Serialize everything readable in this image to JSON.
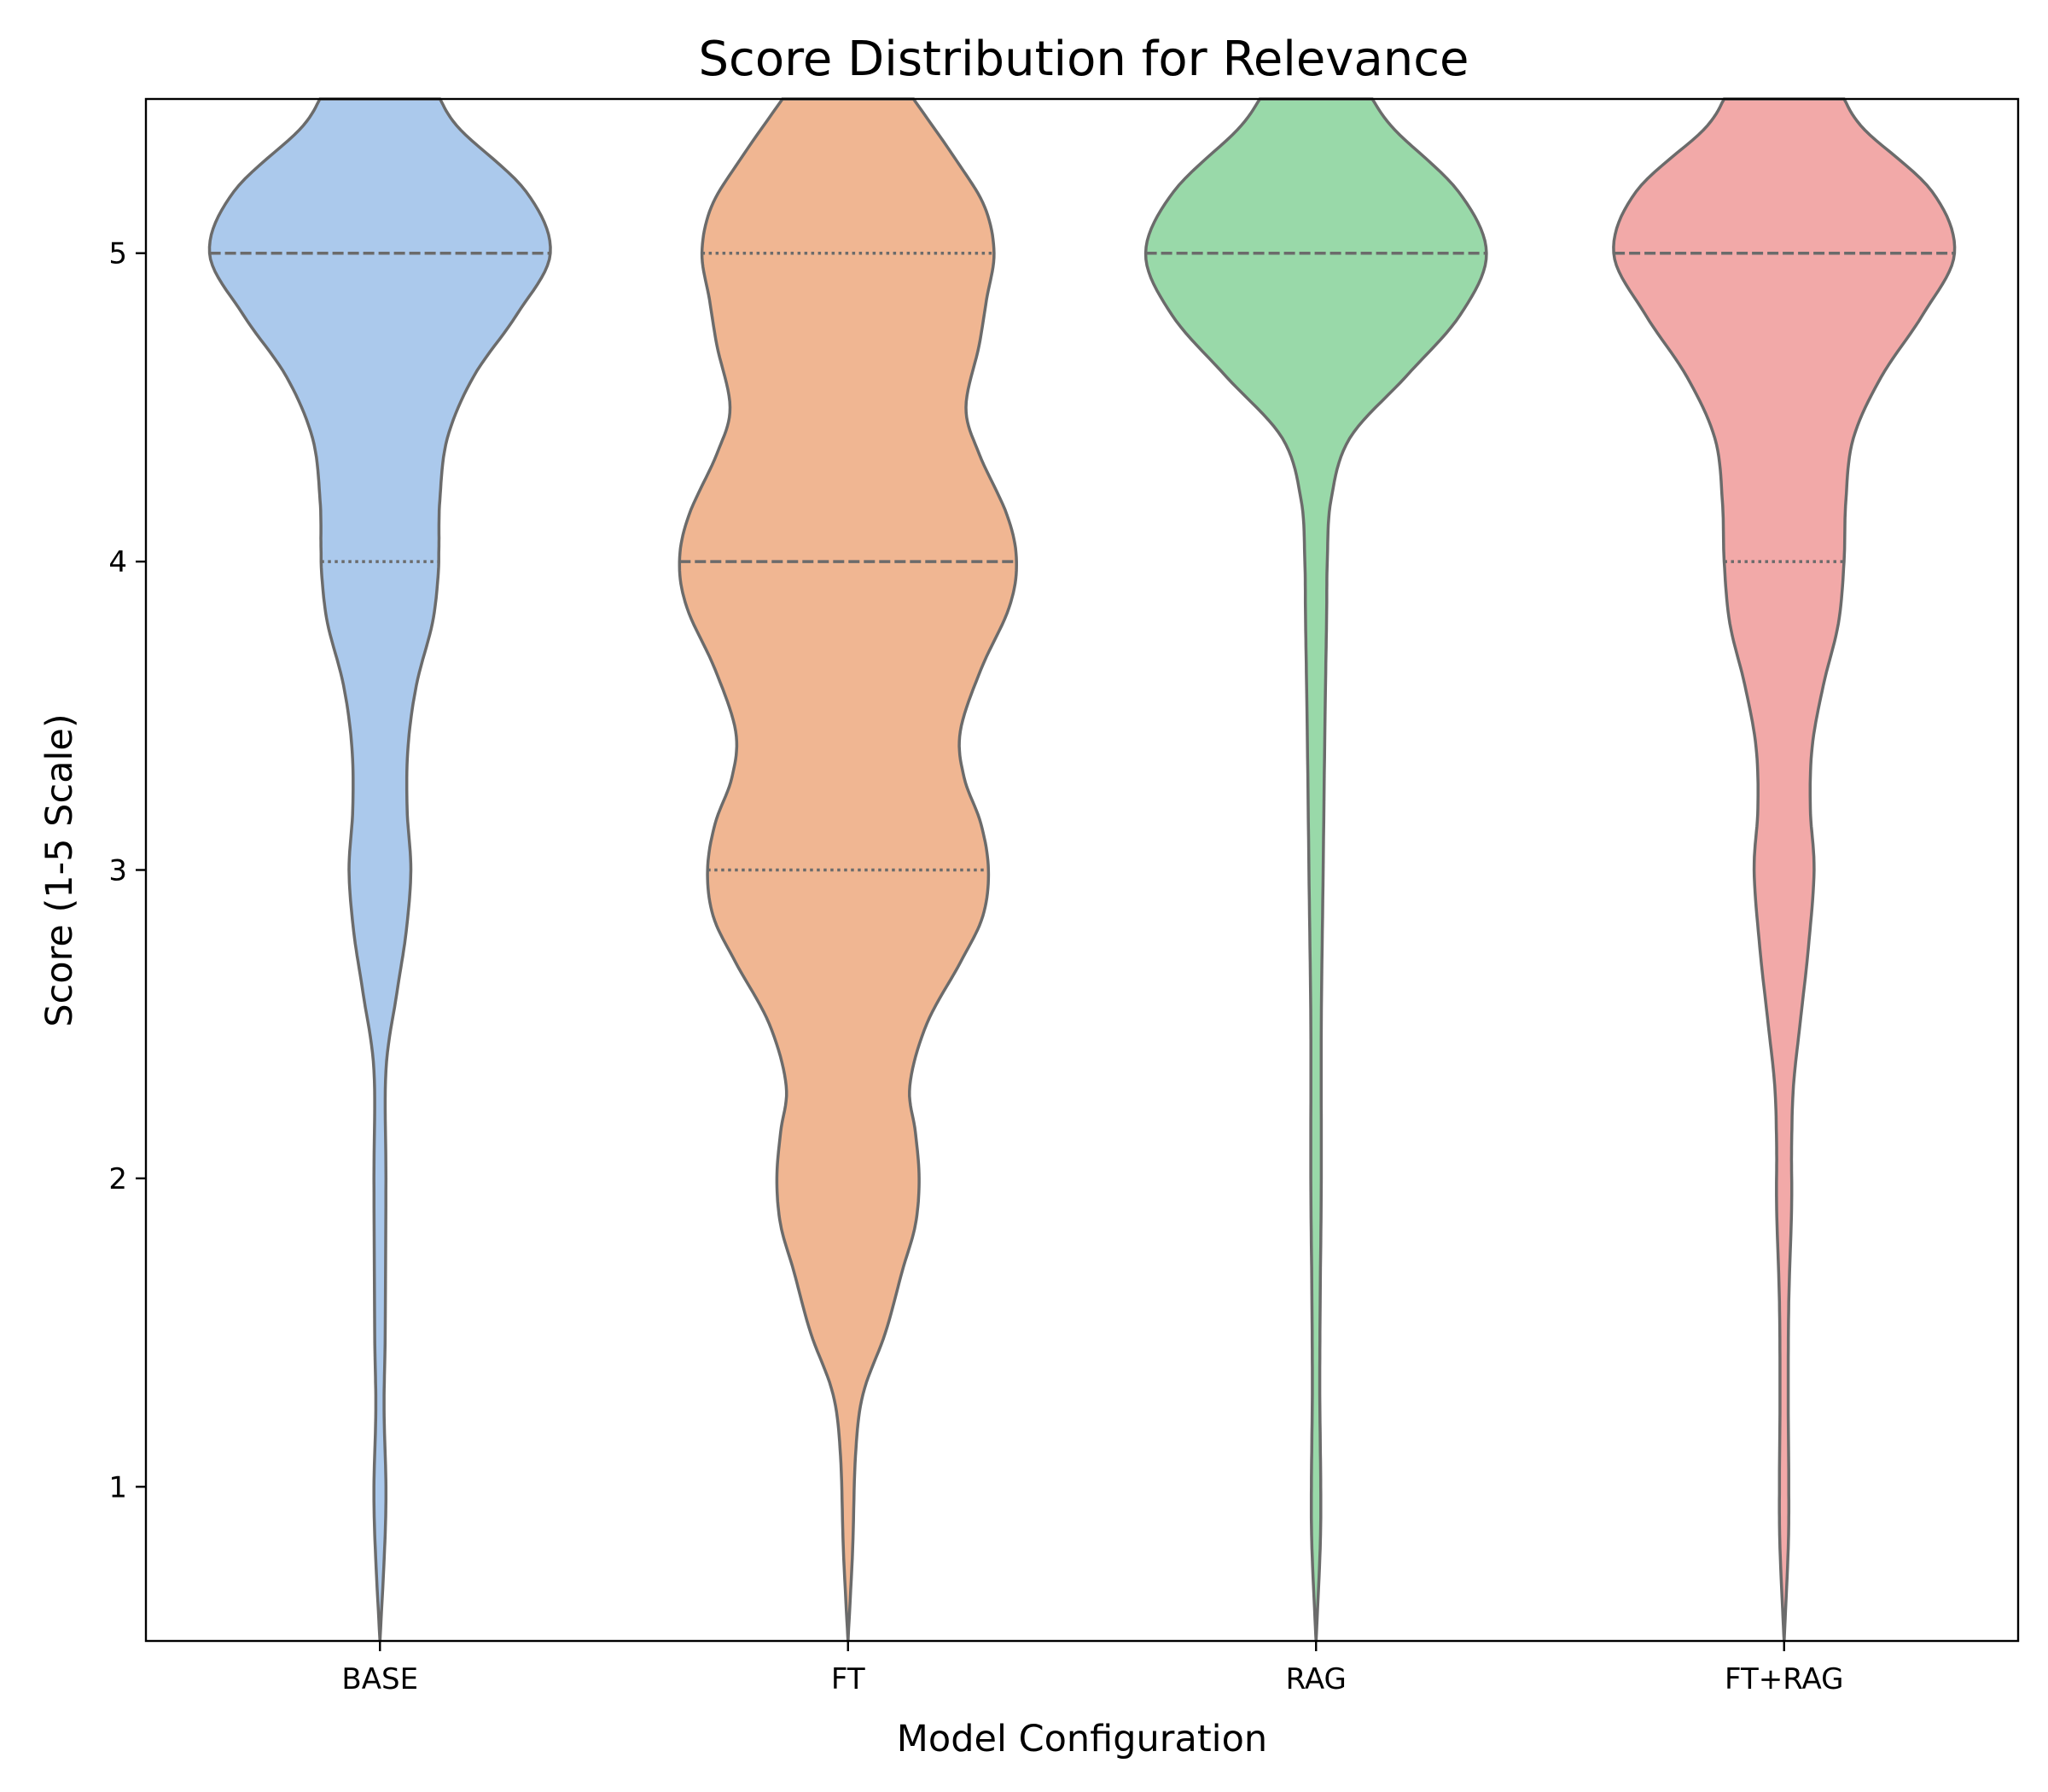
{
  "chart_data": {
    "type": "violin",
    "title": "Score Distribution for Relevance",
    "xlabel": "Model Configuration",
    "ylabel": "Score (1-5 Scale)",
    "ylim": [
      0.5,
      5.5
    ],
    "yticks": [
      1,
      2,
      3,
      4,
      5
    ],
    "grid": false,
    "categories": [
      "BASE",
      "FT",
      "RAG",
      "FT+RAG"
    ],
    "series": [
      {
        "category": "BASE",
        "color": "#abc9ec",
        "q1": 4,
        "median": 5,
        "q3": 5,
        "density": [
          [
            0.5,
            0.0
          ],
          [
            0.8,
            0.025
          ],
          [
            1.0,
            0.032
          ],
          [
            1.25,
            0.022
          ],
          [
            1.5,
            0.028
          ],
          [
            2.0,
            0.032
          ],
          [
            2.35,
            0.032
          ],
          [
            2.6,
            0.09
          ],
          [
            2.8,
            0.14
          ],
          [
            3.0,
            0.165
          ],
          [
            3.2,
            0.145
          ],
          [
            3.4,
            0.15
          ],
          [
            3.6,
            0.195
          ],
          [
            3.8,
            0.28
          ],
          [
            3.95,
            0.31
          ],
          [
            4.05,
            0.315
          ],
          [
            4.2,
            0.32
          ],
          [
            4.4,
            0.36
          ],
          [
            4.6,
            0.5
          ],
          [
            4.8,
            0.73
          ],
          [
            5.0,
            0.91
          ],
          [
            5.2,
            0.78
          ],
          [
            5.4,
            0.43
          ],
          [
            5.5,
            0.32
          ]
        ]
      },
      {
        "category": "FT",
        "color": "#f0b692",
        "q1": 3,
        "median": 4,
        "q3": 5,
        "density": [
          [
            0.5,
            0.0
          ],
          [
            0.8,
            0.025
          ],
          [
            1.1,
            0.04
          ],
          [
            1.3,
            0.08
          ],
          [
            1.5,
            0.2
          ],
          [
            1.7,
            0.29
          ],
          [
            1.85,
            0.36
          ],
          [
            2.0,
            0.38
          ],
          [
            2.15,
            0.36
          ],
          [
            2.3,
            0.33
          ],
          [
            2.5,
            0.42
          ],
          [
            2.7,
            0.6
          ],
          [
            2.85,
            0.72
          ],
          [
            3.0,
            0.75
          ],
          [
            3.15,
            0.71
          ],
          [
            3.3,
            0.62
          ],
          [
            3.45,
            0.6
          ],
          [
            3.65,
            0.71
          ],
          [
            3.85,
            0.86
          ],
          [
            4.0,
            0.9
          ],
          [
            4.15,
            0.85
          ],
          [
            4.35,
            0.7
          ],
          [
            4.5,
            0.63
          ],
          [
            4.7,
            0.7
          ],
          [
            4.85,
            0.74
          ],
          [
            5.0,
            0.78
          ],
          [
            5.15,
            0.73
          ],
          [
            5.3,
            0.58
          ],
          [
            5.5,
            0.35
          ]
        ]
      },
      {
        "category": "RAG",
        "color": "#99d9a9",
        "q1": 5,
        "median": 5,
        "q3": 5,
        "density": [
          [
            0.5,
            0.0
          ],
          [
            0.8,
            0.022
          ],
          [
            1.0,
            0.025
          ],
          [
            1.3,
            0.02
          ],
          [
            1.6,
            0.022
          ],
          [
            2.0,
            0.028
          ],
          [
            2.5,
            0.028
          ],
          [
            3.0,
            0.038
          ],
          [
            3.5,
            0.048
          ],
          [
            3.8,
            0.056
          ],
          [
            4.0,
            0.06
          ],
          [
            4.2,
            0.08
          ],
          [
            4.4,
            0.18
          ],
          [
            4.6,
            0.48
          ],
          [
            4.8,
            0.77
          ],
          [
            5.0,
            0.91
          ],
          [
            5.2,
            0.76
          ],
          [
            5.4,
            0.42
          ],
          [
            5.5,
            0.3
          ]
        ]
      },
      {
        "category": "FT+RAG",
        "color": "#f2a9a8",
        "q1": 4,
        "median": 5,
        "q3": 5,
        "density": [
          [
            0.5,
            0.0
          ],
          [
            0.8,
            0.022
          ],
          [
            1.0,
            0.025
          ],
          [
            1.3,
            0.022
          ],
          [
            1.6,
            0.025
          ],
          [
            1.9,
            0.04
          ],
          [
            2.1,
            0.04
          ],
          [
            2.3,
            0.05
          ],
          [
            2.5,
            0.085
          ],
          [
            2.75,
            0.13
          ],
          [
            3.0,
            0.16
          ],
          [
            3.2,
            0.14
          ],
          [
            3.4,
            0.15
          ],
          [
            3.6,
            0.21
          ],
          [
            3.8,
            0.29
          ],
          [
            4.0,
            0.32
          ],
          [
            4.2,
            0.33
          ],
          [
            4.4,
            0.37
          ],
          [
            4.6,
            0.52
          ],
          [
            4.8,
            0.74
          ],
          [
            5.0,
            0.91
          ],
          [
            5.2,
            0.79
          ],
          [
            5.4,
            0.43
          ],
          [
            5.5,
            0.32
          ]
        ]
      }
    ]
  }
}
